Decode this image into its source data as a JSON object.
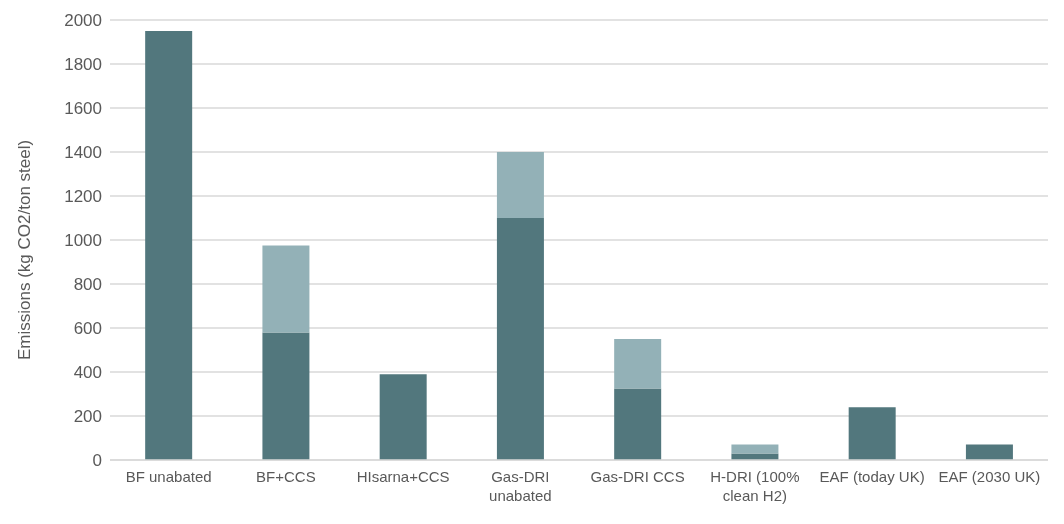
{
  "chart_data": {
    "type": "bar",
    "stacked": true,
    "ylabel": "Emissions (kg CO2/ton steel)",
    "categories": [
      "BF unabated",
      "BF+CCS",
      "HIsarna+CCS",
      "Gas-DRI unabated",
      "Gas-DRI CCS",
      "H-DRI (100% clean H2)",
      "EAF (today UK)",
      "EAF (2030 UK)"
    ],
    "series": [
      {
        "color": "#52777d",
        "values": [
          1950,
          580,
          390,
          1100,
          325,
          30,
          240,
          70
        ]
      },
      {
        "color": "#93b1b7",
        "values": [
          null,
          395,
          null,
          300,
          225,
          40,
          null,
          null
        ]
      }
    ],
    "ylim": [
      0,
      2000
    ],
    "yticks": [
      0,
      200,
      400,
      600,
      800,
      1000,
      1200,
      1400,
      1600,
      1800,
      2000
    ],
    "grid": "y",
    "legend": false
  }
}
